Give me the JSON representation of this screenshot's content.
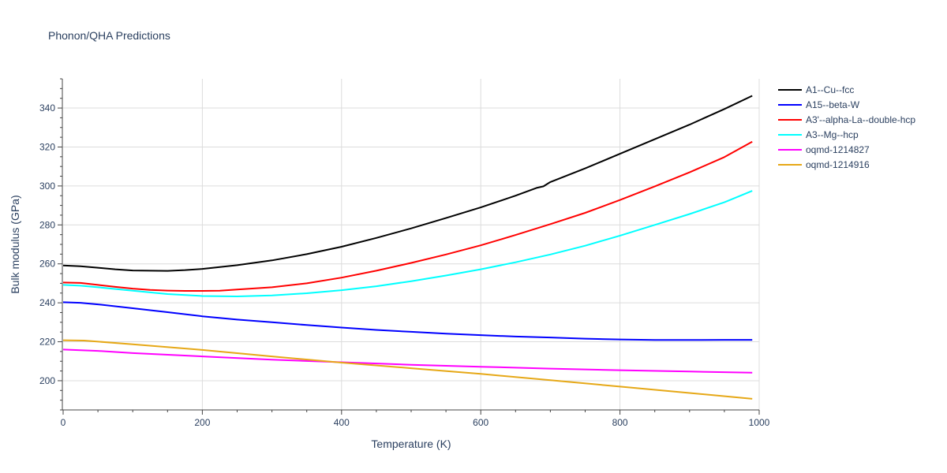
{
  "chart_data": {
    "type": "line",
    "title": "Phonon/QHA Predictions",
    "xlabel": "Temperature (K)",
    "ylabel": "Bulk modulus (GPa)",
    "xlim": [
      0,
      1000
    ],
    "ylim": [
      185,
      355
    ],
    "xticks": [
      0,
      200,
      400,
      600,
      800,
      1000
    ],
    "yticks": [
      200,
      220,
      240,
      260,
      280,
      300,
      320,
      340
    ],
    "grid": true,
    "legend_position": "right",
    "series": [
      {
        "name": "A1--Cu--fcc",
        "color": "#000000",
        "x": [
          0,
          25,
          50,
          75,
          100,
          125,
          150,
          175,
          200,
          250,
          300,
          350,
          400,
          450,
          500,
          550,
          600,
          650,
          680,
          690,
          700,
          750,
          800,
          850,
          900,
          950,
          990
        ],
        "y": [
          259.2,
          258.8,
          258,
          257.2,
          256.6,
          256.5,
          256.4,
          256.8,
          257.4,
          259.3,
          261.8,
          265,
          268.8,
          273.3,
          278.2,
          283.5,
          289,
          295,
          299,
          299.8,
          302,
          309,
          316.5,
          324,
          331.5,
          339.5,
          346.3
        ]
      },
      {
        "name": "A15--beta-W",
        "color": "#0000ff",
        "x": [
          0,
          25,
          50,
          100,
          150,
          200,
          250,
          300,
          350,
          400,
          450,
          500,
          550,
          600,
          650,
          700,
          750,
          800,
          850,
          900,
          950,
          990
        ],
        "y": [
          240.3,
          240,
          239.2,
          237.2,
          235.2,
          233.1,
          231.4,
          230,
          228.6,
          227.3,
          226.1,
          225.1,
          224.2,
          223.4,
          222.7,
          222.2,
          221.6,
          221.2,
          220.9,
          220.9,
          221,
          221
        ]
      },
      {
        "name": "A3'--alpha-La--double-hcp",
        "color": "#ff0000",
        "x": [
          0,
          25,
          50,
          75,
          100,
          125,
          150,
          175,
          200,
          225,
          250,
          300,
          350,
          400,
          450,
          500,
          550,
          600,
          650,
          700,
          750,
          800,
          850,
          900,
          950,
          990
        ],
        "y": [
          250.4,
          250.2,
          249.2,
          248.2,
          247.3,
          246.6,
          246.3,
          246.1,
          246.1,
          246.2,
          246.8,
          248,
          250,
          252.9,
          256.5,
          260.5,
          264.8,
          269.5,
          274.8,
          280.4,
          286.2,
          292.8,
          299.8,
          307,
          314.8,
          322.7
        ]
      },
      {
        "name": "A3--Mg--hcp",
        "color": "#00ffff",
        "x": [
          0,
          25,
          50,
          100,
          150,
          200,
          250,
          300,
          350,
          400,
          450,
          500,
          550,
          600,
          650,
          700,
          750,
          800,
          850,
          900,
          950,
          990
        ],
        "y": [
          249.2,
          248.8,
          248,
          246.2,
          244.5,
          243.5,
          243.3,
          243.8,
          244.9,
          246.5,
          248.5,
          251.1,
          254,
          257.2,
          260.8,
          264.8,
          269.3,
          274.5,
          280,
          285.6,
          291.6,
          297.5
        ]
      },
      {
        "name": "oqmd-1214827",
        "color": "#ff00ff",
        "x": [
          0,
          50,
          100,
          200,
          300,
          400,
          500,
          600,
          700,
          800,
          900,
          990
        ],
        "y": [
          216,
          215.3,
          214.2,
          212.5,
          210.8,
          209.5,
          208.2,
          207.2,
          206.2,
          205.4,
          204.7,
          204.1
        ]
      },
      {
        "name": "oqmd-1214916",
        "color": "#e6a817",
        "x": [
          0,
          30,
          100,
          200,
          300,
          400,
          500,
          600,
          700,
          800,
          900,
          990
        ],
        "y": [
          220.8,
          220.6,
          218.7,
          215.8,
          212.5,
          209.3,
          206.4,
          203.5,
          200.3,
          197,
          193.7,
          190.7
        ]
      }
    ]
  }
}
